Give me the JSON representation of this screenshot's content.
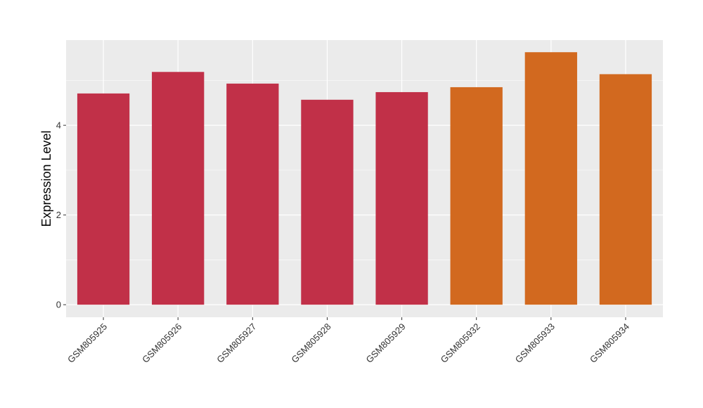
{
  "chart_data": {
    "type": "bar",
    "title": "",
    "xlabel": "",
    "ylabel": "Expression Level",
    "categories": [
      "GSM805925",
      "GSM805926",
      "GSM805927",
      "GSM805928",
      "GSM805929",
      "GSM805932",
      "GSM805933",
      "GSM805934"
    ],
    "values": [
      4.71,
      5.19,
      4.93,
      4.57,
      4.74,
      4.85,
      5.63,
      5.14
    ],
    "groups": [
      "red",
      "red",
      "red",
      "red",
      "red",
      "orange",
      "orange",
      "orange"
    ],
    "group_colors": {
      "red": "#c13048",
      "orange": "#d2691f"
    },
    "ylim": [
      -0.28,
      5.9
    ],
    "yticks": [
      0,
      2,
      4
    ],
    "grid": true,
    "legend": "none",
    "panel_background": "#ebebeb"
  }
}
